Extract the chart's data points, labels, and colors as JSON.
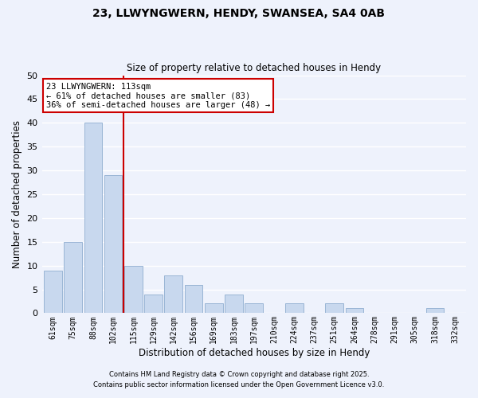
{
  "title": "23, LLWYNGWERN, HENDY, SWANSEA, SA4 0AB",
  "subtitle": "Size of property relative to detached houses in Hendy",
  "xlabel": "Distribution of detached houses by size in Hendy",
  "ylabel": "Number of detached properties",
  "categories": [
    "61sqm",
    "75sqm",
    "88sqm",
    "102sqm",
    "115sqm",
    "129sqm",
    "142sqm",
    "156sqm",
    "169sqm",
    "183sqm",
    "197sqm",
    "210sqm",
    "224sqm",
    "237sqm",
    "251sqm",
    "264sqm",
    "278sqm",
    "291sqm",
    "305sqm",
    "318sqm",
    "332sqm"
  ],
  "values": [
    9,
    15,
    40,
    29,
    10,
    4,
    8,
    6,
    2,
    4,
    2,
    0,
    2,
    0,
    2,
    1,
    0,
    0,
    0,
    1,
    0
  ],
  "bar_color": "#c8d8ee",
  "bar_edge_color": "#9ab5d5",
  "vline_color": "#cc0000",
  "vline_x": 3.5,
  "annotation_text": "23 LLWYNGWERN: 113sqm\n← 61% of detached houses are smaller (83)\n36% of semi-detached houses are larger (48) →",
  "annotation_box_color": "white",
  "annotation_box_edgecolor": "#cc0000",
  "ylim": [
    0,
    50
  ],
  "yticks": [
    0,
    5,
    10,
    15,
    20,
    25,
    30,
    35,
    40,
    45,
    50
  ],
  "background_color": "#eef2fc",
  "grid_color": "white",
  "footer_line1": "Contains HM Land Registry data © Crown copyright and database right 2025.",
  "footer_line2": "Contains public sector information licensed under the Open Government Licence v3.0."
}
